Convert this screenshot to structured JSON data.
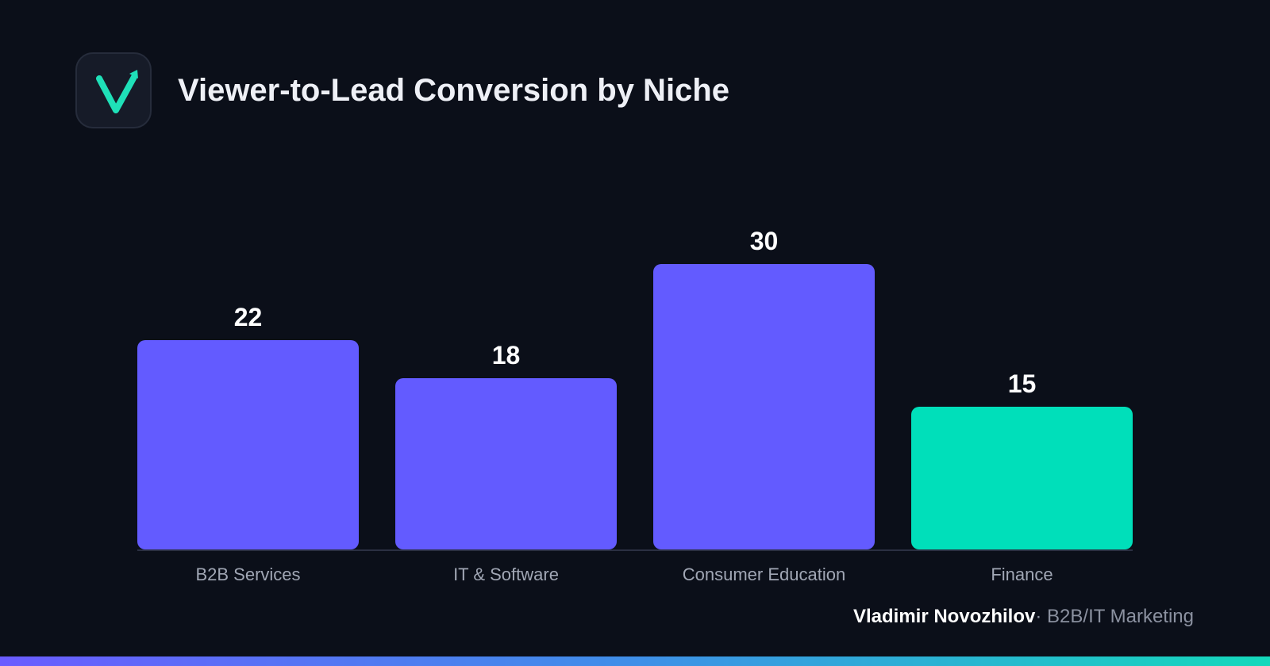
{
  "header": {
    "title": "Viewer-to-Lead Conversion by Niche",
    "logo_icon": "v-checkmark-arrow-icon"
  },
  "colors": {
    "background": "#0b0f19",
    "bar_primary": "#635bff",
    "bar_highlight": "#00dfba",
    "accent_green": "#1fe0b8"
  },
  "chart_data": {
    "type": "bar",
    "title": "Viewer-to-Lead Conversion by Niche",
    "categories": [
      "B2B Services",
      "IT & Software",
      "Consumer Education",
      "Finance"
    ],
    "values": [
      22,
      18,
      30,
      15
    ],
    "value_labels": [
      "22",
      "18",
      "30",
      "15"
    ],
    "highlight_category": "Finance",
    "xlabel": "",
    "ylabel": "",
    "ylim": [
      0,
      30
    ],
    "grid": false,
    "legend": "none"
  },
  "footer": {
    "author": "Vladimir Novozhilov",
    "separator": "·",
    "role": "B2B/IT Marketing"
  }
}
